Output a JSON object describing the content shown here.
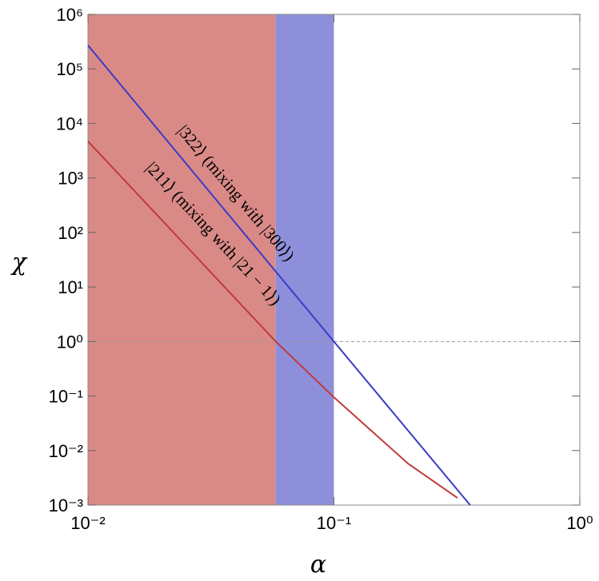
{
  "chart_data": {
    "type": "line",
    "x_label": "α",
    "y_label": "χ",
    "xscale": "log",
    "yscale": "log",
    "xlim": [
      0.01,
      1
    ],
    "ylim": [
      0.001,
      1000000
    ],
    "xticks": [
      {
        "value": 0.01,
        "label": "10⁻²"
      },
      {
        "value": 0.1,
        "label": "10⁻¹"
      },
      {
        "value": 1,
        "label": "10⁰"
      }
    ],
    "yticks": [
      {
        "value": 0.001,
        "label": "10⁻³"
      },
      {
        "value": 0.01,
        "label": "10⁻²"
      },
      {
        "value": 0.1,
        "label": "10⁻¹"
      },
      {
        "value": 1,
        "label": "10⁰"
      },
      {
        "value": 10,
        "label": "10¹"
      },
      {
        "value": 100,
        "label": "10²"
      },
      {
        "value": 1000,
        "label": "10³"
      },
      {
        "value": 10000,
        "label": "10⁴"
      },
      {
        "value": 100000,
        "label": "10⁵"
      },
      {
        "value": 1000000,
        "label": "10⁶"
      }
    ],
    "bands": [
      {
        "from": 0.01,
        "to": 0.058,
        "color": "#d98a87"
      },
      {
        "from": 0.058,
        "to": 0.1,
        "color": "#8e8fdb"
      }
    ],
    "hline": 1,
    "series": [
      {
        "name": "|322⟩ (mixing with |300⟩)",
        "color": "#3b3bc6",
        "x": [
          0.01,
          0.1,
          0.358
        ],
        "values": [
          270000,
          1,
          0.001
        ]
      },
      {
        "name": "|211⟩ (mixing with |21 − 1⟩)",
        "color": "#c03a3a",
        "x": [
          0.01,
          0.058,
          0.1,
          0.2,
          0.318
        ],
        "values": [
          4700,
          1,
          0.095,
          0.0058,
          0.00135
        ]
      }
    ]
  }
}
